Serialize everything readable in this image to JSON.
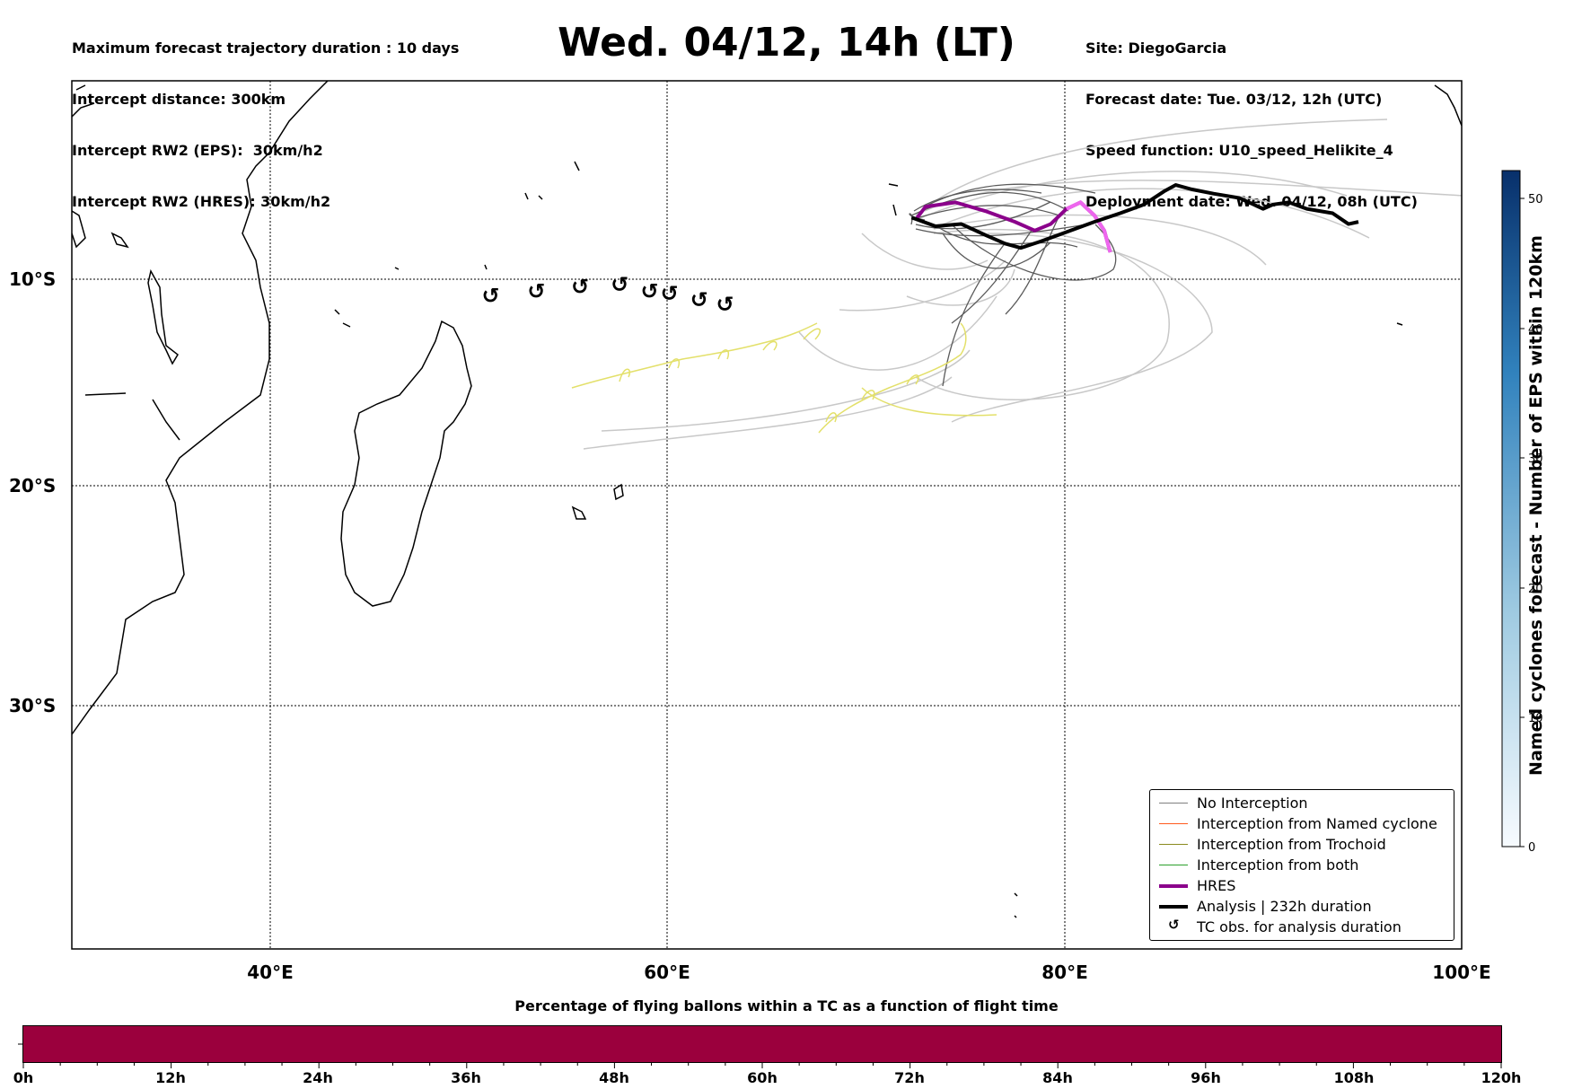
{
  "header_left": [
    "Maximum forecast trajectory duration : 10 days",
    "Intercept distance: 300km",
    "Intercept RW2 (EPS):  30km/h2",
    "Intercept RW2 (HRES): 30km/h2"
  ],
  "title": "Wed. 04/12, 14h (LT)",
  "header_right": [
    "Site: DiegoGarcia",
    "Forecast date: Tue. 03/12, 12h (UTC)",
    "Speed function: U10_speed_Helikite_4",
    "Deployment date: Wed. 04/12, 08h (UTC)"
  ],
  "map": {
    "lon_labels": [
      "40°E",
      "60°E",
      "80°E",
      "100°E"
    ],
    "lat_labels": [
      "10°S",
      "20°S",
      "30°S"
    ]
  },
  "legend": {
    "items": [
      {
        "label": "No Interception",
        "color": "#808080"
      },
      {
        "label": "Interception from Named cyclone",
        "color": "#ff5a1e"
      },
      {
        "label": "Interception from Trochoid",
        "color": "#8a8a1e"
      },
      {
        "label": "Interception from both",
        "color": "#2ca02c"
      },
      {
        "label": "HRES",
        "color": "#8b008b"
      },
      {
        "label": "Analysis | 232h duration",
        "color": "#000000"
      },
      {
        "label": "TC obs. for analysis duration",
        "icon": "cyclone-symbol-icon"
      }
    ]
  },
  "colorbar_right": {
    "label": "Named cyclones forecast - Number of EPS within 120km",
    "ticks": [
      "0",
      "10",
      "20",
      "30",
      "40",
      "50"
    ],
    "colors": [
      "#f7fbff",
      "#08306b"
    ]
  },
  "bottom_bar": {
    "title": "Percentage of flying ballons within a TC as a function of flight time",
    "color": "#9b003d",
    "ticks": [
      "0h",
      "12h",
      "24h",
      "36h",
      "48h",
      "60h",
      "72h",
      "84h",
      "96h",
      "108h",
      "120h"
    ]
  },
  "chart_data": {
    "type": "map",
    "title": "Wed. 04/12, 14h (LT)",
    "xlim": [
      30,
      100
    ],
    "ylim": [
      -41,
      -1
    ],
    "x_ticks": [
      40,
      60,
      80,
      100
    ],
    "y_ticks": [
      -10,
      -20,
      -30
    ],
    "grid": true,
    "legend_position": "lower-right",
    "series": [
      {
        "name": "HRES",
        "color": "#8b008b",
        "lon": [
          72.5,
          73.0,
          74.5,
          76.0,
          77.5,
          78.5,
          79.3,
          80.1,
          80.8,
          81.5,
          82.0,
          82.3
        ],
        "lat": [
          -7.4,
          -6.8,
          -6.6,
          -7.0,
          -7.5,
          -7.9,
          -7.6,
          -6.9,
          -6.6,
          -7.2,
          -7.9,
          -8.9
        ]
      },
      {
        "name": "Analysis | 232h duration",
        "color": "#000000",
        "lon": [
          72.3,
          73.5,
          74.8,
          76.0,
          77.0,
          77.8,
          78.8,
          80.0,
          81.5,
          82.8,
          84.0,
          85.0,
          85.6,
          86.4,
          87.5,
          88.8,
          90.0,
          90.5,
          91.3,
          92.2,
          93.5,
          94.3,
          94.8
        ],
        "lat": [
          -7.3,
          -7.7,
          -7.6,
          -8.1,
          -8.5,
          -8.7,
          -8.4,
          -8.0,
          -7.5,
          -7.1,
          -6.7,
          -6.1,
          -5.8,
          -6.0,
          -6.2,
          -6.4,
          -6.9,
          -6.7,
          -6.6,
          -6.9,
          -7.1,
          -7.6,
          -7.5
        ]
      }
    ],
    "tc_obs": {
      "lon": [
        51.1,
        53.4,
        55.6,
        57.6,
        59.1,
        60.1,
        61.6,
        62.9
      ],
      "lat": [
        -10.9,
        -10.7,
        -10.5,
        -10.4,
        -10.7,
        -10.8,
        -11.1,
        -11.3
      ]
    }
  }
}
